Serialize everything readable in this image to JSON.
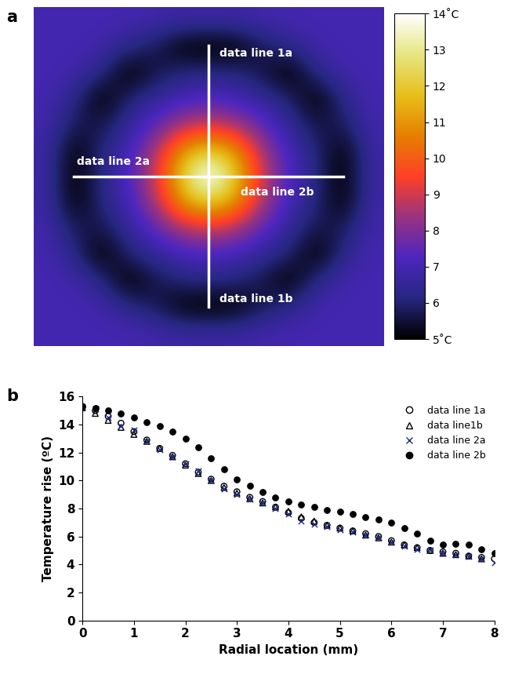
{
  "chart_data": [
    {
      "type": "heatmap",
      "title": "a",
      "tick_labels": false,
      "annotations": [
        "data line 1a",
        "data line 1b",
        "data line 2a",
        "data line 2b"
      ],
      "cells": [
        [
          7.0,
          7.0,
          7.0,
          7.0,
          6.9,
          6.8,
          6.8,
          6.8,
          6.9,
          7.0,
          7.0,
          7.0,
          7.0
        ],
        [
          7.0,
          7.0,
          6.9,
          6.3,
          5.8,
          4.9,
          4.8,
          4.9,
          5.8,
          6.3,
          6.9,
          7.0,
          7.0
        ],
        [
          7.0,
          6.9,
          6.3,
          4.8,
          5.6,
          6.1,
          6.2,
          6.1,
          5.6,
          4.8,
          6.3,
          6.9,
          7.0
        ],
        [
          7.0,
          6.3,
          4.8,
          6.0,
          6.5,
          7.0,
          7.2,
          7.0,
          6.5,
          6.0,
          4.8,
          6.3,
          7.0
        ],
        [
          6.9,
          5.8,
          5.6,
          6.5,
          7.5,
          8.5,
          9.0,
          8.5,
          7.5,
          6.5,
          5.6,
          5.8,
          6.9
        ],
        [
          6.8,
          4.9,
          6.1,
          7.0,
          8.5,
          11.0,
          12.0,
          11.0,
          8.5,
          7.0,
          6.1,
          4.9,
          6.8
        ],
        [
          6.8,
          4.8,
          6.2,
          7.2,
          9.0,
          12.0,
          15.0,
          12.0,
          9.0,
          7.2,
          6.2,
          4.8,
          6.8
        ],
        [
          6.8,
          4.9,
          6.1,
          7.0,
          8.5,
          11.0,
          12.0,
          11.0,
          8.5,
          7.0,
          6.1,
          4.9,
          6.8
        ],
        [
          6.9,
          5.8,
          5.6,
          6.5,
          7.5,
          8.5,
          9.0,
          8.5,
          7.5,
          6.5,
          5.6,
          5.8,
          6.9
        ],
        [
          7.0,
          6.3,
          4.8,
          6.0,
          6.5,
          7.0,
          7.2,
          7.0,
          6.5,
          6.0,
          4.8,
          6.3,
          7.0
        ],
        [
          7.0,
          6.9,
          6.3,
          4.8,
          5.6,
          6.1,
          6.2,
          6.1,
          5.6,
          4.8,
          6.3,
          6.9,
          7.0
        ],
        [
          7.0,
          7.0,
          6.9,
          6.3,
          5.8,
          4.9,
          4.8,
          4.9,
          5.8,
          6.3,
          6.9,
          7.0,
          7.0
        ],
        [
          7.0,
          7.0,
          7.0,
          7.0,
          6.9,
          6.8,
          6.8,
          6.8,
          6.9,
          7.0,
          7.0,
          7.0,
          7.0
        ]
      ],
      "color_range": [
        5,
        14
      ],
      "color_ticks": [
        {
          "value": 5,
          "label": "5˚C"
        },
        6,
        7,
        8,
        9,
        10,
        11,
        12,
        13,
        {
          "value": 14,
          "label": "14˚C"
        }
      ]
    },
    {
      "type": "scatter",
      "title": "b",
      "x_label": "Radial location (mm)",
      "y_label": "Temperature rise (ºC)",
      "x": [
        0,
        0.25,
        0.5,
        0.75,
        1,
        1.25,
        1.5,
        1.75,
        2,
        2.25,
        2.5,
        2.75,
        3,
        3.25,
        3.5,
        3.75,
        4,
        4.25,
        4.5,
        4.75,
        5,
        5.25,
        5.5,
        5.75,
        6,
        6.25,
        6.5,
        6.75,
        7,
        7.25,
        7.5,
        7.75,
        8
      ],
      "xlim": [
        0,
        8
      ],
      "xticks": [
        0,
        1,
        2,
        3,
        4,
        5,
        6,
        7,
        8
      ],
      "ylim": [
        0,
        16
      ],
      "yticks": [
        0,
        2,
        4,
        6,
        8,
        10,
        12,
        14,
        16
      ],
      "legend": "upper right",
      "series": [
        {
          "name": "data line 1a",
          "color": "#000000",
          "marker": "circle_open",
          "values": [
            15.3,
            15.0,
            14.6,
            14.1,
            13.5,
            12.9,
            12.3,
            11.8,
            11.2,
            10.6,
            10.1,
            9.6,
            9.2,
            8.8,
            8.5,
            8.1,
            7.7,
            7.3,
            7.0,
            6.8,
            6.6,
            6.4,
            6.2,
            6.0,
            5.7,
            5.4,
            5.2,
            5.0,
            4.9,
            4.8,
            4.6,
            4.5,
            4.4
          ]
        },
        {
          "name": "data line1b",
          "color": "#000000",
          "marker": "triangle_open",
          "values": [
            15.2,
            14.8,
            14.3,
            13.8,
            13.3,
            12.8,
            12.3,
            11.7,
            11.1,
            10.5,
            10.0,
            9.5,
            9.1,
            8.7,
            8.4,
            8.1,
            7.8,
            7.4,
            7.1,
            6.8,
            6.6,
            6.4,
            6.1,
            5.9,
            5.6,
            5.4,
            5.2,
            5.0,
            4.8,
            4.7,
            4.6,
            4.4,
            null
          ]
        },
        {
          "name": "data line 2a",
          "color": "#1f2a8c",
          "marker": "x",
          "values": [
            15.3,
            15.1,
            14.5,
            13.9,
            13.6,
            12.8,
            12.2,
            11.7,
            11.2,
            10.7,
            10.0,
            9.4,
            9.0,
            8.7,
            8.4,
            8.0,
            7.6,
            7.1,
            6.9,
            6.7,
            6.5,
            6.3,
            6.1,
            5.9,
            5.6,
            5.3,
            5.1,
            5.0,
            4.8,
            4.7,
            4.6,
            4.4,
            4.1
          ]
        },
        {
          "name": "data line 2b",
          "color": "#000000",
          "marker": "circle",
          "values": [
            15.3,
            15.2,
            15.0,
            14.8,
            14.5,
            14.2,
            13.9,
            13.5,
            13.0,
            12.4,
            11.6,
            10.8,
            10.1,
            9.6,
            9.2,
            8.8,
            8.5,
            8.3,
            8.1,
            7.9,
            7.8,
            7.6,
            7.4,
            7.2,
            7.0,
            6.6,
            6.2,
            5.7,
            5.4,
            5.5,
            5.4,
            5.1,
            4.8
          ]
        }
      ]
    }
  ]
}
